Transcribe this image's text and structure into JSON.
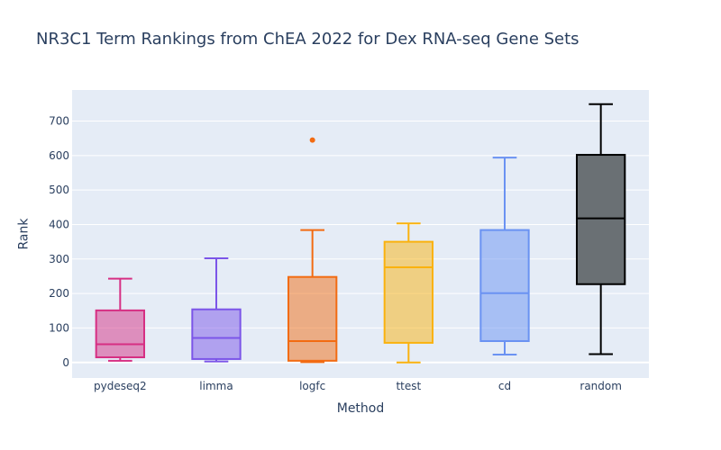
{
  "chart_data": {
    "type": "box",
    "title": "NR3C1 Term Rankings from ChEA 2022 for Dex RNA-seq Gene Sets",
    "xlabel": "Method",
    "ylabel": "Rank",
    "ylim": [
      -45,
      790
    ],
    "yticks": [
      0,
      100,
      200,
      300,
      400,
      500,
      600,
      700
    ],
    "grid": true,
    "categories": [
      "pydeseq2",
      "limma",
      "logfc",
      "ttest",
      "cd",
      "random"
    ],
    "series": [
      {
        "category": "pydeseq2",
        "color": "#d62f83",
        "min": 5,
        "q1": 15,
        "median": 53,
        "q3": 151,
        "max": 243,
        "outliers": []
      },
      {
        "category": "limma",
        "color": "#7b55e8",
        "min": 3,
        "q1": 10,
        "median": 71,
        "q3": 154,
        "max": 302,
        "outliers": []
      },
      {
        "category": "logfc",
        "color": "#f26b12",
        "min": 1,
        "q1": 5,
        "median": 62,
        "q3": 248,
        "max": 384,
        "outliers": [
          645
        ]
      },
      {
        "category": "ttest",
        "color": "#fab20e",
        "min": 0,
        "q1": 57,
        "median": 276,
        "q3": 350,
        "max": 403,
        "outliers": []
      },
      {
        "category": "cd",
        "color": "#6a92f2",
        "min": 23,
        "q1": 62,
        "median": 201,
        "q3": 384,
        "max": 594,
        "outliers": []
      },
      {
        "category": "random",
        "color": "#000000",
        "fill": "#6a7074",
        "min": 24,
        "q1": 227,
        "median": 418,
        "q3": 602,
        "max": 749,
        "outliers": []
      }
    ]
  }
}
